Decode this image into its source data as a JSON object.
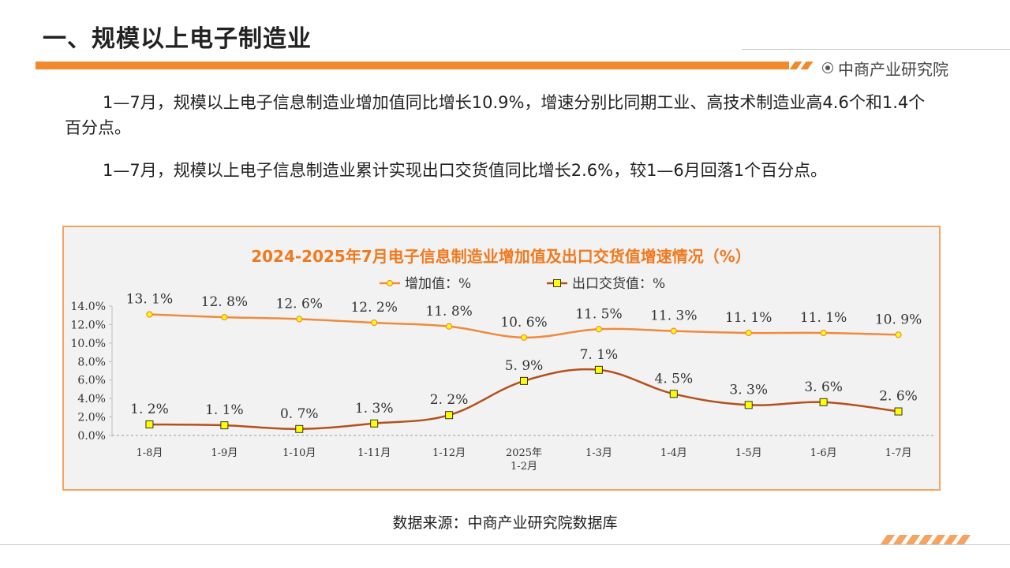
{
  "header": {
    "title": "一、规模以上电子制造业",
    "brand": "中商产业研究院"
  },
  "paragraphs": [
    "1—7月，规模以上电子信息制造业增加值同比增长10.9%，增速分别比同期工业、高技术制造业高4.6个和1.4个百分点。",
    "1—7月，规模以上电子信息制造业累计实现出口交货值同比增长2.6%，较1—6月回落1个百分点。"
  ],
  "chart_data": {
    "type": "line",
    "title": "2024-2025年7月电子信息制造业增加值及出口交货值增速情况（%）",
    "categories": [
      "1-8月",
      "1-9月",
      "1-10月",
      "1-11月",
      "1-12月",
      "2025年\n1-2月",
      "1-3月",
      "1-4月",
      "1-5月",
      "1-6月",
      "1-7月"
    ],
    "series": [
      {
        "name": "增加值：%",
        "values": [
          13.1,
          12.8,
          12.6,
          12.2,
          11.8,
          10.6,
          11.5,
          11.3,
          11.1,
          11.1,
          10.9
        ],
        "labels": [
          "13. 1%",
          "12. 8%",
          "12. 6%",
          "12. 2%",
          "11. 8%",
          "10. 6%",
          "11. 5%",
          "11. 3%",
          "11. 1%",
          "11. 1%",
          "10. 9%"
        ],
        "color": "#f08a3c",
        "marker": "circle"
      },
      {
        "name": "出口交货值：%",
        "values": [
          1.2,
          1.1,
          0.7,
          1.3,
          2.2,
          5.9,
          7.1,
          4.5,
          3.3,
          3.6,
          2.6
        ],
        "labels": [
          "1. 2%",
          "1. 1%",
          "0. 7%",
          "1. 3%",
          "2. 2%",
          "5. 9%",
          "7. 1%",
          "4. 5%",
          "3. 3%",
          "3. 6%",
          "2. 6%"
        ],
        "color": "#b5501c",
        "marker": "square"
      }
    ],
    "ylim": [
      0,
      14
    ],
    "yticks": [
      "0.0%",
      "2.0%",
      "4.0%",
      "6.0%",
      "8.0%",
      "10.0%",
      "12.0%",
      "14.0%"
    ],
    "legend": "top",
    "grid": false
  },
  "source": "数据来源：中商产业研究院数据库"
}
